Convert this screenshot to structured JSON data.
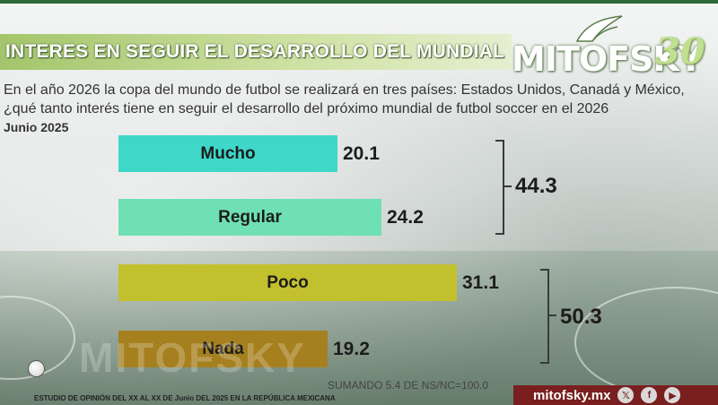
{
  "header": {
    "title": "INTERES EN SEGUIR EL DESARROLLO DEL MUNDIAL"
  },
  "logo": {
    "brand": "MITOFSKY",
    "number": "30"
  },
  "question": {
    "text": "En el año 2026 la copa del mundo de futbol se realizará en tres países:  Estados Unidos, Canadá y México, ¿qué tanto interés tiene en seguir el desarrollo del próximo mundial de futbol soccer en el 2026",
    "date": "Junio 2025"
  },
  "chart_data": {
    "type": "bar",
    "orientation": "horizontal",
    "categories": [
      "Mucho",
      "Regular",
      "Poco",
      "Nada"
    ],
    "values": [
      20.1,
      24.2,
      31.1,
      19.2
    ],
    "value_labels": [
      "20.1",
      "24.2",
      "31.1",
      "19.2"
    ],
    "colors": [
      "#3fd7c7",
      "#6fe0b4",
      "#c3c02e",
      "#a6801f"
    ],
    "groups": [
      {
        "members": [
          "Mucho",
          "Regular"
        ],
        "total": 44.3,
        "total_label": "44.3"
      },
      {
        "members": [
          "Poco",
          "Nada"
        ],
        "total": 50.3,
        "total_label": "50.3"
      }
    ],
    "note": "SUMANDO 5.4 DE NS/NC=100.0",
    "xlim": [
      0,
      31.1
    ]
  },
  "watermark": "MITOFSKY",
  "footer": {
    "left": "ESTUDIO DE OPINIÓN DEL XX AL XX DE Junio DEL 2025 EN LA REPÚBLICA MEXICANA",
    "site": "mitofsky.mx",
    "icons": [
      "x-icon",
      "facebook-icon",
      "youtube-icon"
    ]
  }
}
